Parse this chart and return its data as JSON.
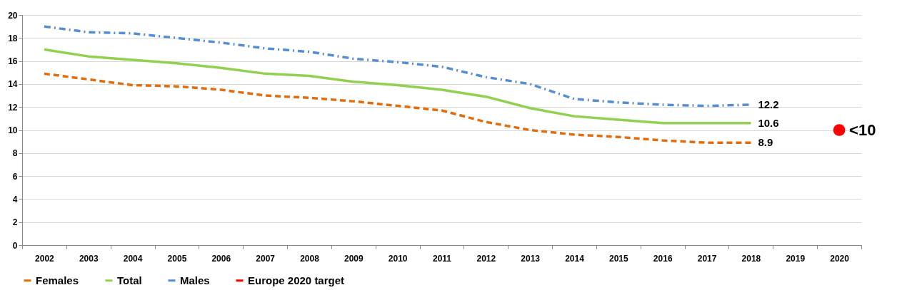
{
  "chart_data": {
    "type": "line",
    "categories": [
      "2002",
      "2003",
      "2004",
      "2005",
      "2006",
      "2007",
      "2008",
      "2009",
      "2010",
      "2011",
      "2012",
      "2013",
      "2014",
      "2015",
      "2016",
      "2017",
      "2018",
      "2019",
      "2020"
    ],
    "series": [
      {
        "name": "Females",
        "color": "#e46c0a",
        "line_style": "dashed",
        "values": [
          14.9,
          14.4,
          13.9,
          13.8,
          13.5,
          13.0,
          12.8,
          12.5,
          12.1,
          11.7,
          10.7,
          10.0,
          9.6,
          9.4,
          9.1,
          8.9,
          8.9,
          null,
          null
        ],
        "value_labels": [
          null,
          null,
          null,
          null,
          null,
          null,
          null,
          null,
          null,
          null,
          null,
          null,
          null,
          null,
          null,
          null,
          "8.9",
          null,
          null
        ]
      },
      {
        "name": "Total",
        "color": "#92d050",
        "line_style": "solid",
        "values": [
          17.0,
          16.4,
          16.1,
          15.8,
          15.4,
          14.9,
          14.7,
          14.2,
          13.9,
          13.5,
          12.9,
          11.9,
          11.2,
          10.9,
          10.6,
          10.6,
          10.6,
          null,
          null
        ],
        "value_labels": [
          null,
          null,
          null,
          null,
          null,
          null,
          null,
          null,
          null,
          null,
          null,
          null,
          null,
          null,
          null,
          null,
          "10.6",
          null,
          null
        ]
      },
      {
        "name": "Males",
        "color": "#558ed5",
        "line_style": "dashdot",
        "values": [
          19.0,
          18.5,
          18.4,
          18.0,
          17.6,
          17.1,
          16.8,
          16.2,
          15.9,
          15.5,
          14.6,
          14.0,
          12.7,
          12.4,
          12.2,
          12.1,
          12.2,
          null,
          null
        ],
        "value_labels": [
          null,
          null,
          null,
          null,
          null,
          null,
          null,
          null,
          null,
          null,
          null,
          null,
          null,
          null,
          null,
          null,
          "12.2",
          null,
          null
        ]
      },
      {
        "name": "Europe 2020 target",
        "color": "#ff0000",
        "type": "scatter",
        "marker": "circle",
        "values": [
          null,
          null,
          null,
          null,
          null,
          null,
          null,
          null,
          null,
          null,
          null,
          null,
          null,
          null,
          null,
          null,
          null,
          null,
          10
        ],
        "value_labels": [
          null,
          null,
          null,
          null,
          null,
          null,
          null,
          null,
          null,
          null,
          null,
          null,
          null,
          null,
          null,
          null,
          null,
          null,
          "<10"
        ]
      }
    ],
    "ylim": [
      0,
      20
    ],
    "yticks": [
      0,
      2,
      4,
      6,
      8,
      10,
      12,
      14,
      16,
      18,
      20
    ],
    "grid": "y",
    "legend": "bottom"
  }
}
